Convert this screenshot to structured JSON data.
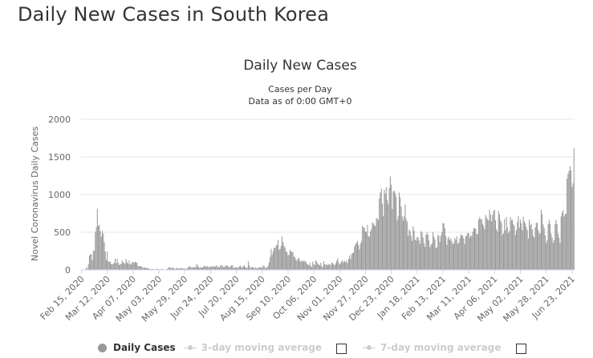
{
  "page_title": "Daily New Cases in South Korea",
  "colors": {
    "bar": "#999999",
    "text": "#333333",
    "grid": "#e6e6e6",
    "legend_off": "#cccccc"
  },
  "chart_data": {
    "type": "bar",
    "title": "Daily New Cases",
    "subtitle_line1": "Cases per Day",
    "subtitle_line2": "Data as of 0:00 GMT+0",
    "ylabel": "Novel Coronavirus Daily Cases",
    "xlabel": "",
    "ylim": [
      0,
      2000
    ],
    "y_ticks": [
      "0",
      "500",
      "1000",
      "1500",
      "2000"
    ],
    "x_ticks": [
      "Feb 15, 2020",
      "Mar 12, 2020",
      "Apr 07, 2020",
      "May 03, 2020",
      "May 29, 2020",
      "Jun 24, 2020",
      "Jul 20, 2020",
      "Aug 15, 2020",
      "Sep 10, 2020",
      "Oct 06, 2020",
      "Nov 01, 2020",
      "Nov 27, 2020",
      "Dec 23, 2020",
      "Jan 18, 2021",
      "Feb 13, 2021",
      "Mar 11, 2021",
      "Apr 06, 2021",
      "May 02, 2021",
      "May 28, 2021",
      "Jun 23, 2021"
    ],
    "series": [
      {
        "name": "Daily Cases",
        "start_date": "Feb 15, 2020",
        "interval_days": 1,
        "approx_values": [
          0,
          0,
          1,
          1,
          2,
          34,
          16,
          74,
          190,
          210,
          207,
          130,
          253,
          256,
          505,
          571,
          813,
          586,
          600,
          516,
          438,
          518,
          483,
          367,
          248,
          131,
          242,
          114,
          110,
          107,
          76,
          74,
          84,
          93,
          152,
          87,
          147,
          98,
          64,
          76,
          78,
          125,
          101,
          89,
          86,
          146,
          105,
          78,
          125,
          81,
          69,
          100,
          106,
          94,
          110,
          101,
          94,
          53,
          47,
          47,
          53,
          39,
          27,
          30,
          32,
          25,
          27,
          22,
          18,
          8,
          13,
          9,
          11,
          8,
          6,
          10,
          14,
          9,
          4,
          9,
          6,
          13,
          8,
          3,
          2,
          4,
          12,
          18,
          34,
          35,
          27,
          26,
          29,
          27,
          13,
          15,
          32,
          12,
          20,
          23,
          26,
          22,
          20,
          16,
          19,
          13,
          15,
          32,
          40,
          49,
          39,
          27,
          38,
          34,
          35,
          38,
          79,
          58,
          39,
          27,
          37,
          31,
          34,
          43,
          59,
          48,
          39,
          51,
          36,
          41,
          39,
          48,
          42,
          50,
          46,
          44,
          62,
          42,
          43,
          28,
          61,
          54,
          63,
          33,
          39,
          60,
          56,
          57,
          45,
          35,
          44,
          61,
          63,
          26,
          39,
          34,
          33,
          26,
          37,
          45,
          58,
          28,
          41,
          48,
          61,
          35,
          34,
          26,
          113,
          59,
          25,
          36,
          43,
          31,
          20,
          35,
          23,
          18,
          30,
          33,
          38,
          34,
          28,
          58,
          54,
          20,
          33,
          34,
          56,
          103,
          166,
          279,
          197,
          246,
          297,
          288,
          324,
          332,
          397,
          266,
          280,
          320,
          441,
          371,
          323,
          299,
          248,
          235,
          195,
          199,
          267,
          248,
          238,
          235,
          176,
          168,
          136,
          121,
          153,
          156,
          121,
          109,
          126,
          110,
          125,
          114,
          110,
          82,
          70,
          61,
          95,
          50,
          38,
          113,
          77,
          61,
          126,
          110,
          82,
          70,
          61,
          95,
          50,
          38,
          113,
          77,
          61,
          75,
          64,
          73,
          75,
          58,
          98,
          91,
          76,
          58,
          89,
          121,
          155,
          102,
          71,
          88,
          118,
          125,
          97,
          119,
          103,
          125,
          89,
          143,
          191,
          146,
          208,
          223,
          230,
          313,
          343,
          363,
          386,
          330,
          271,
          349,
          382,
          583,
          569,
          555,
          509,
          504,
          598,
          450,
          438,
          511,
          540,
          631,
          615,
          594,
          580,
          686,
          682,
          662,
          950,
          1030,
          1078,
          880,
          718,
          1064,
          1014,
          1097,
          926,
          869,
          1090,
          1241,
          1132,
          808,
          1045,
          1050,
          1020,
          970,
          657,
          715,
          1029,
          967,
          840,
          714,
          657,
          710,
          869,
          674,
          641,
          451,
          537,
          513,
          451,
          386,
          580,
          520,
          404,
          389,
          437,
          431,
          392,
          346,
          516,
          497,
          431,
          355,
          305,
          467,
          497,
          469,
          393,
          303,
          336,
          354,
          504,
          445,
          403,
          288,
          303,
          467,
          451,
          370,
          456,
          504,
          619,
          621,
          557,
          448,
          332,
          416,
          440,
          396,
          416,
          382,
          344,
          356,
          424,
          398,
          446,
          346,
          363,
          418,
          470,
          465,
          452,
          415,
          346,
          446,
          463,
          488,
          490,
          428,
          458,
          447,
          506,
          557,
          551,
          543,
          473,
          478,
          668,
          700,
          671,
          677,
          614,
          587,
          543,
          731,
          698,
          673,
          658,
          797,
          735,
          644,
          731,
          785,
          797,
          661,
          542,
          512,
          785,
          735,
          661,
          627,
          463,
          488,
          676,
          525,
          701,
          564,
          488,
          511,
          701,
          660,
          666,
          610,
          585,
          463,
          528,
          635,
          715,
          561,
          666,
          620,
          529,
          707,
          645,
          619,
          574,
          530,
          415,
          667,
          594,
          611,
          540,
          452,
          430,
          565,
          629,
          622,
          533,
          485,
          485,
          799,
          741,
          605,
          556,
          459,
          357,
          395,
          611,
          663,
          612,
          482,
          430,
          357,
          395,
          611,
          663,
          612,
          482,
          430,
          355,
          710,
          762,
          794,
          711,
          743,
          746,
          1212,
          1275,
          1316,
          1378,
          1324,
          1100,
          1150,
          1615
        ]
      }
    ],
    "legend": [
      {
        "label": "Daily Cases",
        "active": true
      },
      {
        "label": "3-day moving average",
        "active": false
      },
      {
        "label": "7-day moving average",
        "active": false
      }
    ],
    "grid": true,
    "legend_placement": "bottom"
  }
}
